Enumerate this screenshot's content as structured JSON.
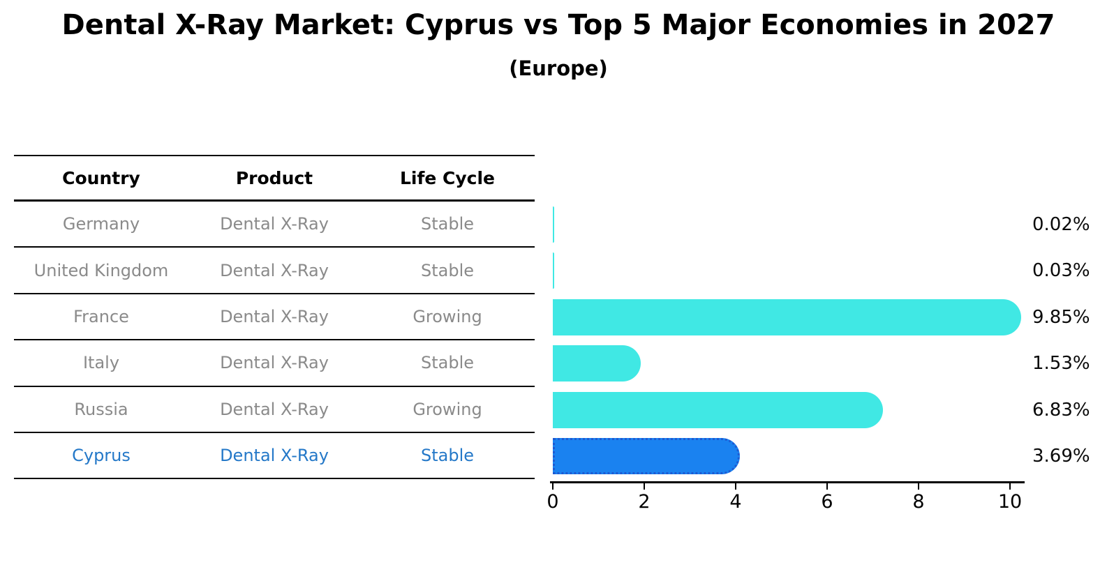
{
  "title": "Dental X-Ray Market: Cyprus vs Top 5 Major Economies in 2027",
  "subtitle": "(Europe)",
  "table": {
    "headers": {
      "country": "Country",
      "product": "Product",
      "life_cycle": "Life Cycle"
    },
    "rows": [
      {
        "country": "Germany",
        "product": "Dental X-Ray",
        "life_cycle": "Stable"
      },
      {
        "country": "United Kingdom",
        "product": "Dental X-Ray",
        "life_cycle": "Stable"
      },
      {
        "country": "France",
        "product": "Dental X-Ray",
        "life_cycle": "Growing"
      },
      {
        "country": "Italy",
        "product": "Dental X-Ray",
        "life_cycle": "Stable"
      },
      {
        "country": "Russia",
        "product": "Dental X-Ray",
        "life_cycle": "Growing"
      },
      {
        "country": "Cyprus",
        "product": "Dental X-Ray",
        "life_cycle": "Stable"
      }
    ],
    "highlighted_row": "Cyprus"
  },
  "chart_data": {
    "type": "bar",
    "orientation": "horizontal",
    "title": "Dental X-Ray Market: Cyprus vs Top 5 Major Economies in 2027",
    "subtitle": "(Europe)",
    "categories": [
      "Germany",
      "United Kingdom",
      "France",
      "Italy",
      "Russia",
      "Cyprus"
    ],
    "values": [
      0.02,
      0.03,
      9.85,
      1.53,
      6.83,
      3.69
    ],
    "value_labels": [
      "0.02%",
      "0.03%",
      "9.85%",
      "1.53%",
      "6.83%",
      "3.69%"
    ],
    "x_ticks": [
      "0",
      "2",
      "4",
      "6",
      "8",
      "10"
    ],
    "x_tick_values": [
      0,
      2,
      4,
      6,
      8,
      10
    ],
    "xlim": [
      0,
      10.3
    ],
    "highlight_index": 5,
    "grid": false,
    "legend_position": "none"
  },
  "colors": {
    "background": "#ffffff",
    "bar": "#40e8e4",
    "highlight_bar": "#1a82f0",
    "highlight_border": "#1e5ad2",
    "highlight_text": "#2478c8",
    "row_text": "#8a8a8a",
    "header_text": "#000000",
    "value_text": "#0a0a0a",
    "axis": "#000000"
  }
}
